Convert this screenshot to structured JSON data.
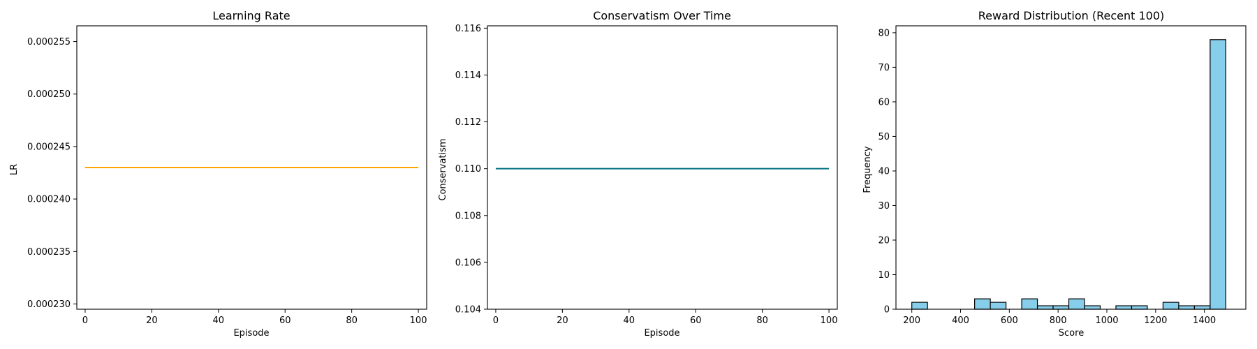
{
  "chart_data": [
    {
      "type": "line",
      "title": "Learning Rate",
      "xlabel": "Episode",
      "ylabel": "LR",
      "xlim": [
        -2.5,
        102.5
      ],
      "ylim": [
        0.0002295,
        0.0002565
      ],
      "xticks": [
        0,
        20,
        40,
        60,
        80,
        100
      ],
      "xtick_labels": [
        "0",
        "20",
        "40",
        "60",
        "80",
        "100"
      ],
      "yticks": [
        0.00023,
        0.000235,
        0.00024,
        0.000245,
        0.00025,
        0.000255
      ],
      "ytick_labels": [
        "0.000230",
        "0.000235",
        "0.000240",
        "0.000245",
        "0.000250",
        "0.000255"
      ],
      "grid": false,
      "series": [
        {
          "color": "#ffa500",
          "x": [
            0,
            100
          ],
          "y": [
            0.000243,
            0.000243
          ]
        }
      ]
    },
    {
      "type": "line",
      "title": "Conservatism Over Time",
      "xlabel": "Episode",
      "ylabel": "Conservatism",
      "xlim": [
        -2.5,
        102.5
      ],
      "ylim": [
        0.104,
        0.1161
      ],
      "xticks": [
        0,
        20,
        40,
        60,
        80,
        100
      ],
      "xtick_labels": [
        "0",
        "20",
        "40",
        "60",
        "80",
        "100"
      ],
      "yticks": [
        0.104,
        0.106,
        0.108,
        0.11,
        0.112,
        0.114,
        0.116
      ],
      "ytick_labels": [
        "0.104",
        "0.106",
        "0.108",
        "0.110",
        "0.112",
        "0.114",
        "0.116"
      ],
      "grid": false,
      "series": [
        {
          "color": "#007080",
          "x": [
            0,
            100
          ],
          "y": [
            0.11,
            0.11
          ]
        }
      ]
    },
    {
      "type": "bar",
      "title": "Reward Distribution (Recent 100)",
      "xlabel": "Score",
      "ylabel": "Frequency",
      "xlim": [
        135,
        1570
      ],
      "ylim": [
        0,
        82
      ],
      "xticks": [
        200,
        400,
        600,
        800,
        1000,
        1200,
        1400
      ],
      "xtick_labels": [
        "200",
        "400",
        "600",
        "800",
        "1000",
        "1200",
        "1400"
      ],
      "yticks": [
        0,
        10,
        20,
        30,
        40,
        50,
        60,
        70,
        80
      ],
      "ytick_labels": [
        "0",
        "10",
        "20",
        "30",
        "40",
        "50",
        "60",
        "70",
        "80"
      ],
      "grid": false,
      "bar_color": "#87ceeb",
      "edge_color": "#000000",
      "bin_edges": [
        200,
        264.4,
        328.8,
        393.2,
        457.6,
        522,
        586.4,
        650.8,
        715.2,
        779.6,
        844,
        908.4,
        972.8,
        1037.2,
        1101.6,
        1166,
        1230.4,
        1294.8,
        1359.2,
        1423.6,
        1488
      ],
      "values": [
        2,
        0,
        0,
        0,
        3,
        2,
        0,
        3,
        1,
        1,
        3,
        1,
        0,
        1,
        1,
        0,
        2,
        1,
        1,
        78
      ]
    }
  ]
}
